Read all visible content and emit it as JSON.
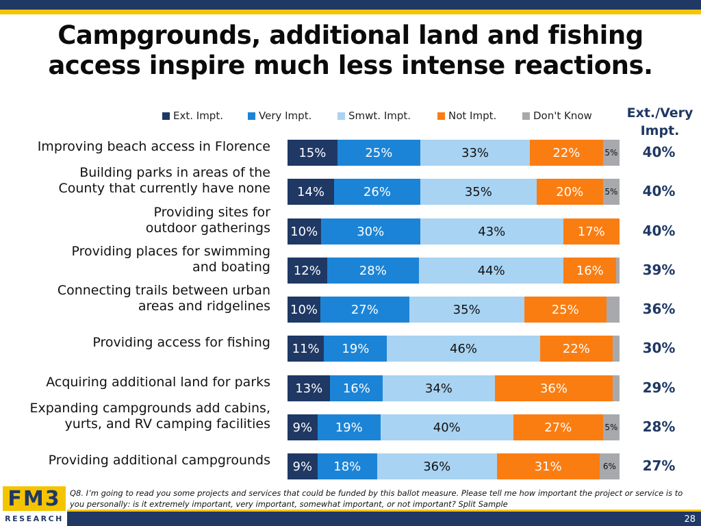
{
  "title_lines": [
    "Campgrounds, additional land and fishing",
    "access inspire much less intense reactions."
  ],
  "colors": {
    "ext": "#1f3864",
    "very": "#1c84d6",
    "smwt": "#a9d3f2",
    "not": "#fa7d12",
    "dk": "#a8a9ad",
    "accent": "#f5c400"
  },
  "ext_very_header": [
    "Ext./Very",
    "Impt."
  ],
  "chart_data": {
    "type": "bar",
    "stacked": true,
    "orientation": "horizontal",
    "legend": [
      "Ext. Impt.",
      "Very Impt.",
      "Smwt. Impt.",
      "Not Impt.",
      "Don't Know"
    ],
    "legend_placement": "top",
    "rows": [
      {
        "label_lines": [
          "Improving beach access in Florence"
        ],
        "values": [
          15,
          25,
          33,
          22,
          5
        ],
        "labels": [
          "15%",
          "25%",
          "33%",
          "22%",
          "5%"
        ],
        "net": "40%"
      },
      {
        "label_lines": [
          "Building parks in areas of the",
          "County that currently have none"
        ],
        "values": [
          14,
          26,
          35,
          20,
          5
        ],
        "labels": [
          "14%",
          "26%",
          "35%",
          "20%",
          "5%"
        ],
        "net": "40%"
      },
      {
        "label_lines": [
          "Providing sites for",
          "outdoor gatherings"
        ],
        "values": [
          10,
          30,
          43,
          17,
          0
        ],
        "labels": [
          "10%",
          "30%",
          "43%",
          "17%",
          ""
        ],
        "net": "40%"
      },
      {
        "label_lines": [
          "Providing places for swimming",
          "and boating"
        ],
        "values": [
          12,
          28,
          44,
          16,
          1
        ],
        "labels": [
          "12%",
          "28%",
          "44%",
          "16%",
          ""
        ],
        "net": "39%"
      },
      {
        "label_lines": [
          "Connecting trails between urban",
          "areas and ridgelines"
        ],
        "values": [
          10,
          27,
          35,
          25,
          4
        ],
        "labels": [
          "10%",
          "27%",
          "35%",
          "25%",
          ""
        ],
        "net": "36%"
      },
      {
        "label_lines": [
          "Providing access for fishing"
        ],
        "values": [
          11,
          19,
          46,
          22,
          2
        ],
        "labels": [
          "11%",
          "19%",
          "46%",
          "22%",
          ""
        ],
        "net": "30%"
      },
      {
        "label_lines": [
          "Acquiring additional land for parks"
        ],
        "values": [
          13,
          16,
          34,
          36,
          2
        ],
        "labels": [
          "13%",
          "16%",
          "34%",
          "36%",
          ""
        ],
        "net": "29%"
      },
      {
        "label_lines": [
          "Expanding campgrounds add cabins,",
          "yurts, and RV camping facilities"
        ],
        "values": [
          9,
          19,
          40,
          27,
          5
        ],
        "labels": [
          "9%",
          "19%",
          "40%",
          "27%",
          "5%"
        ],
        "net": "28%"
      },
      {
        "label_lines": [
          "Providing additional campgrounds"
        ],
        "values": [
          9,
          18,
          36,
          31,
          6
        ],
        "labels": [
          "9%",
          "18%",
          "36%",
          "31%",
          "6%"
        ],
        "net": "27%"
      }
    ]
  },
  "logo": {
    "top": "FM3",
    "bottom": "RESEARCH"
  },
  "footnote": "Q8. I’m going to read you some projects and services that could be funded by this ballot measure. Please tell me how important the project or service is to you personally: is it extremely important, very important, somewhat important, or not important?  Split Sample",
  "page_number": "28"
}
